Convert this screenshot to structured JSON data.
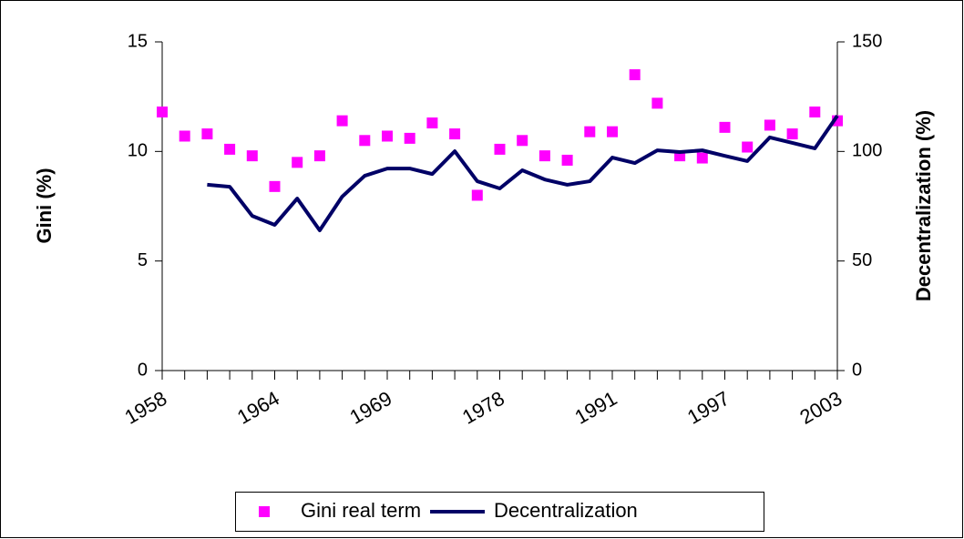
{
  "chart_data": {
    "type": "combo",
    "ylabel": "Gini (%)",
    "y2label": "Decentralization (%)",
    "categories": [
      "1958",
      null,
      null,
      null,
      null,
      "1964",
      null,
      null,
      null,
      null,
      "1969",
      null,
      null,
      null,
      null,
      "1978",
      null,
      null,
      null,
      null,
      "1991",
      null,
      null,
      null,
      null,
      "1997",
      null,
      null,
      null,
      null,
      "2003"
    ],
    "series": [
      {
        "name": "Gini real term",
        "type": "scatter",
        "color": "#ff00ff",
        "axis": "y",
        "values": [
          11.8,
          10.7,
          10.8,
          10.1,
          9.8,
          8.4,
          9.5,
          9.8,
          11.4,
          10.5,
          10.7,
          10.6,
          11.3,
          10.8,
          8.0,
          10.1,
          10.5,
          9.8,
          9.6,
          10.9,
          10.9,
          13.5,
          12.2,
          9.8,
          9.7,
          11.1,
          10.2,
          11.2,
          10.8,
          11.8,
          11.4
        ]
      },
      {
        "name": "Decentralization",
        "type": "line",
        "color": "#000066",
        "axis": "y2",
        "values": [
          null,
          null,
          84.8,
          83.9,
          70.6,
          66.5,
          78.5,
          64.0,
          79.4,
          88.9,
          92.2,
          92.2,
          89.7,
          100.1,
          86.4,
          83.1,
          91.4,
          87.2,
          84.8,
          86.4,
          97.2,
          94.7,
          100.5,
          99.7,
          100.5,
          98.0,
          95.6,
          106.4,
          103.9,
          101.4,
          116.3
        ]
      }
    ],
    "ylim": [
      0,
      15
    ],
    "yticks": [
      0,
      5,
      10,
      15
    ],
    "y2lim": [
      0,
      150
    ],
    "y2ticks": [
      0,
      50,
      100,
      150
    ],
    "legend": "bottom"
  }
}
